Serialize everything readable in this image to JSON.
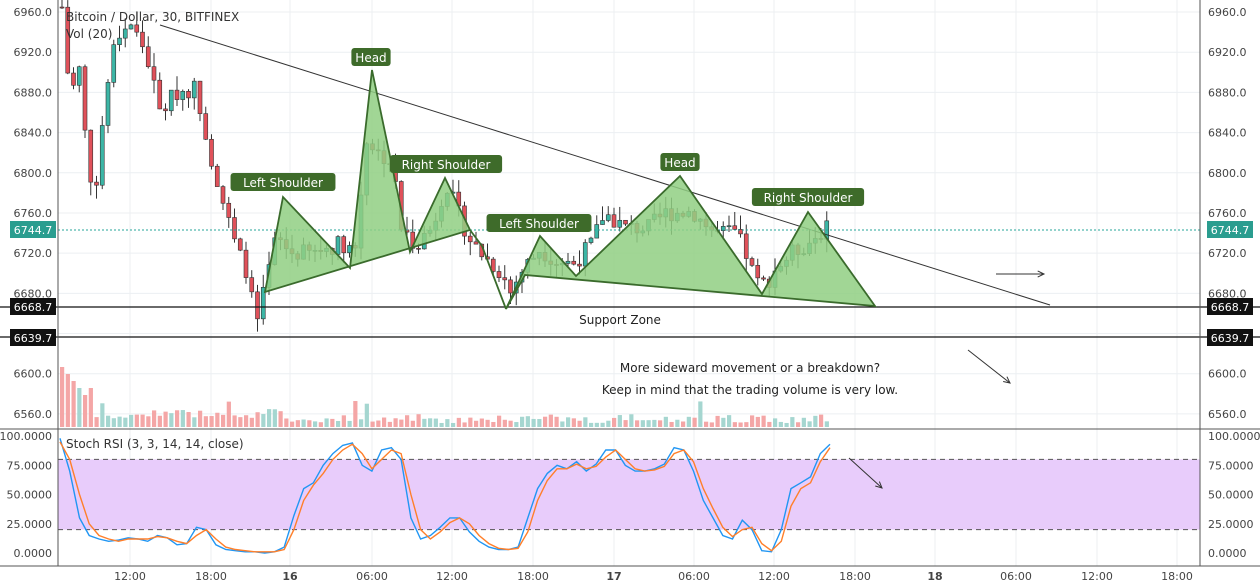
{
  "header": {
    "symbol": "Bitcoin / Dollar, 30, BITFINEX",
    "volume_label": "Vol (20)"
  },
  "chart_data": [
    {
      "type": "candlestick",
      "title": "Bitcoin / Dollar, 30, BITFINEX",
      "ylim": [
        6546,
        6972
      ],
      "y_ticks": [
        "6960.0",
        "6920.0",
        "6880.0",
        "6840.0",
        "6800.0",
        "6760.0",
        "6720.0",
        "6680.0",
        "6640.0",
        "6600.0",
        "6560.0"
      ],
      "x_ticks": [
        "12:00",
        "18:00",
        "16",
        "06:00",
        "12:00",
        "18:00",
        "17",
        "06:00",
        "12:00",
        "18:00",
        "18",
        "06:00",
        "12:00",
        "18:00"
      ],
      "last_price": "6744.7",
      "support_zone": {
        "label": "Support Zone",
        "top": "6668.7",
        "bottom": "6639.7"
      },
      "patterns": [
        {
          "labels": [
            "Left Shoulder",
            "Head",
            "Right Shoulder"
          ]
        },
        {
          "labels": [
            "Left Shoulder",
            "Head",
            "Right Shoulder"
          ]
        }
      ],
      "annotations": [
        "More sideward movement or a breakdown?",
        "Keep in mind that the trading volume is very low."
      ],
      "grid": true
    },
    {
      "type": "line",
      "title": "Stoch RSI (3, 3, 14, 14, close)",
      "ylim": [
        0,
        100
      ],
      "y_ticks": [
        "100.0000",
        "75.0000",
        "50.0000",
        "25.0000",
        "0.0000"
      ],
      "band": [
        20,
        80
      ],
      "series": [
        {
          "color": "#2196f3",
          "values": [
            98,
            70,
            30,
            15,
            12,
            10,
            11,
            13,
            12,
            10,
            15,
            13,
            7,
            8,
            22,
            20,
            7,
            3,
            2,
            1,
            1,
            0,
            1,
            5,
            32,
            55,
            60,
            75,
            85,
            92,
            94,
            75,
            70,
            88,
            90,
            80,
            30,
            12,
            15,
            22,
            30,
            30,
            18,
            10,
            5,
            3,
            3,
            5,
            30,
            55,
            68,
            75,
            72,
            78,
            70,
            76,
            88,
            88,
            75,
            70,
            70,
            72,
            76,
            90,
            88,
            70,
            45,
            30,
            15,
            12,
            28,
            20,
            2,
            1,
            20,
            55,
            60,
            65,
            85,
            93
          ]
        },
        {
          "color": "#ff7f2a",
          "values": [
            95,
            80,
            50,
            25,
            15,
            12,
            10,
            12,
            12,
            12,
            14,
            13,
            10,
            8,
            15,
            20,
            12,
            5,
            3,
            2,
            1,
            1,
            1,
            3,
            20,
            45,
            58,
            68,
            80,
            88,
            93,
            85,
            72,
            80,
            88,
            85,
            50,
            20,
            12,
            18,
            26,
            30,
            25,
            15,
            8,
            4,
            3,
            4,
            18,
            45,
            62,
            72,
            72,
            76,
            72,
            74,
            82,
            88,
            80,
            72,
            70,
            71,
            74,
            85,
            88,
            78,
            55,
            38,
            22,
            14,
            20,
            22,
            8,
            2,
            10,
            40,
            55,
            60,
            78,
            90
          ]
        }
      ]
    }
  ]
}
